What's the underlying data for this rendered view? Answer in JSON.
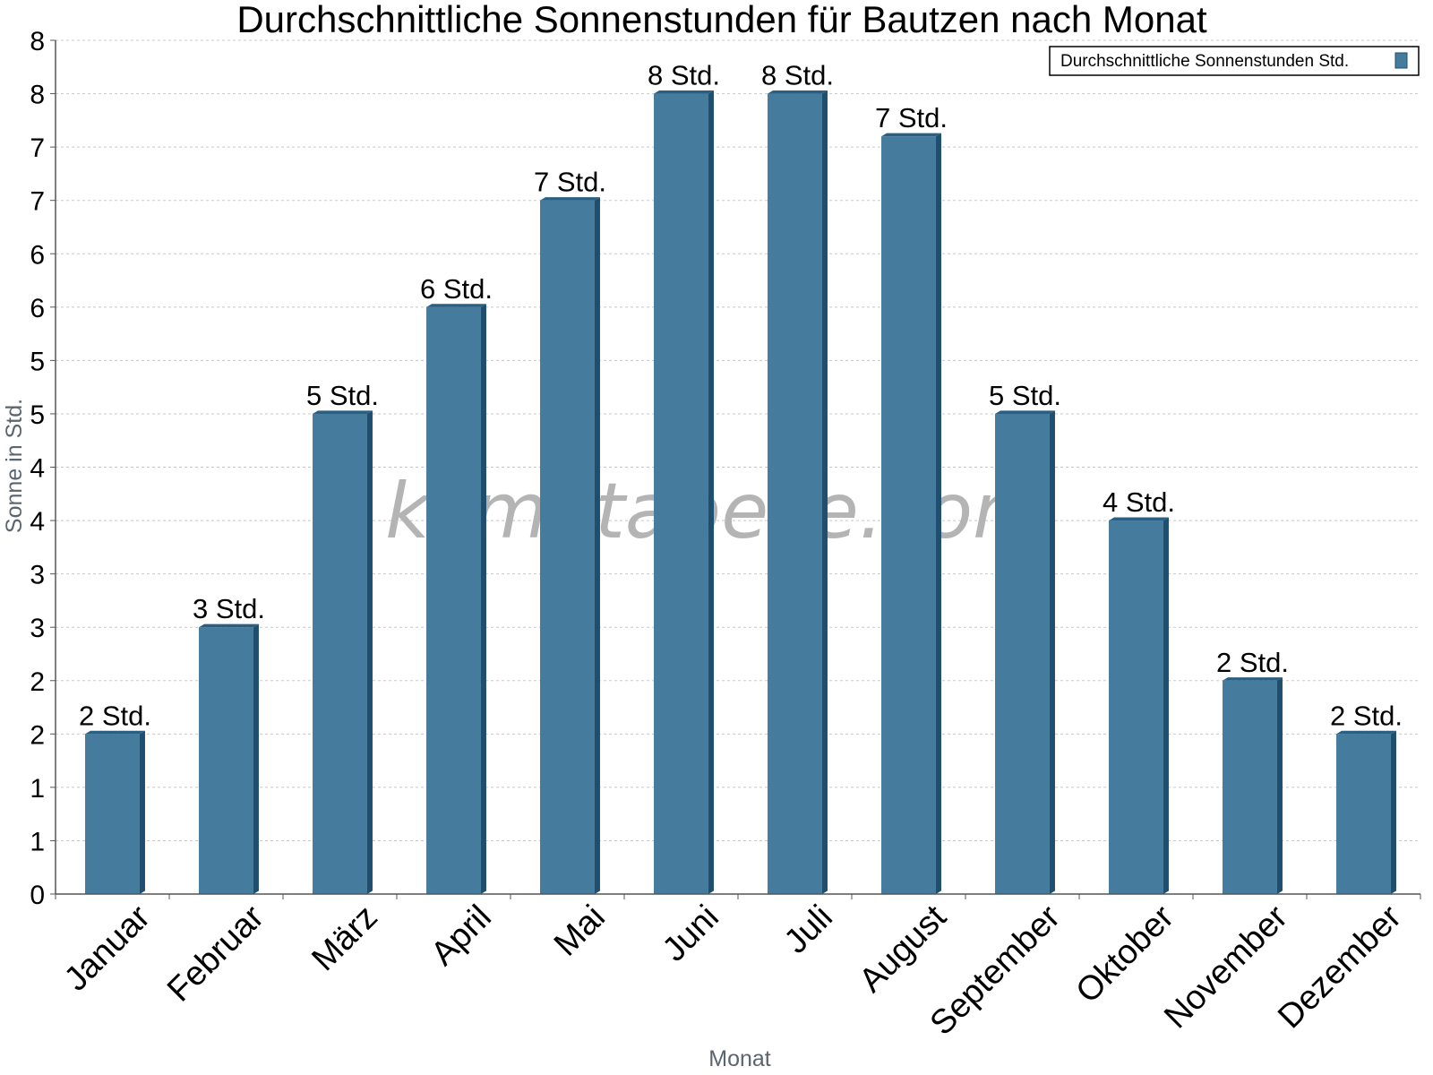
{
  "colors": {
    "bar_face": "#457b9d",
    "bar_side": "#1f4e6e",
    "bar_top": "#2a5f84",
    "grid": "#c8c8c8",
    "axis": "#555555"
  },
  "watermark": "klimatabelle.com",
  "chart_data": {
    "type": "bar",
    "title": "Durchschnittliche Sonnenstunden für Bautzen nach Monat",
    "xlabel": "Monat",
    "ylabel": "Sonne in Std.",
    "categories": [
      "Januar",
      "Februar",
      "März",
      "April",
      "Mai",
      "Juni",
      "Juli",
      "August",
      "September",
      "Oktober",
      "November",
      "Dezember"
    ],
    "series": [
      {
        "name": "Durchschnittliche Sonnenstunden Std.",
        "values": [
          1.5,
          2.5,
          4.5,
          5.5,
          6.5,
          7.5,
          7.5,
          7.1,
          4.5,
          3.5,
          2.0,
          1.5
        ],
        "labels": [
          "2 Std.",
          "3 Std.",
          "5 Std.",
          "6 Std.",
          "7 Std.",
          "8 Std.",
          "8 Std.",
          "7 Std.",
          "5 Std.",
          "4 Std.",
          "2 Std.",
          "2 Std."
        ]
      }
    ],
    "ylim": [
      0,
      8
    ],
    "yticks": [
      0,
      0.5,
      1,
      1.5,
      2,
      2.5,
      3,
      3.5,
      4,
      4.5,
      5,
      5.5,
      6,
      6.5,
      7,
      7.5,
      8
    ],
    "ytick_labels": [
      "0",
      "1",
      "1",
      "2",
      "2",
      "3",
      "3",
      "4",
      "4",
      "5",
      "5",
      "6",
      "6",
      "7",
      "7",
      "8",
      "8"
    ],
    "grid": true,
    "legend_position": "top-right"
  }
}
